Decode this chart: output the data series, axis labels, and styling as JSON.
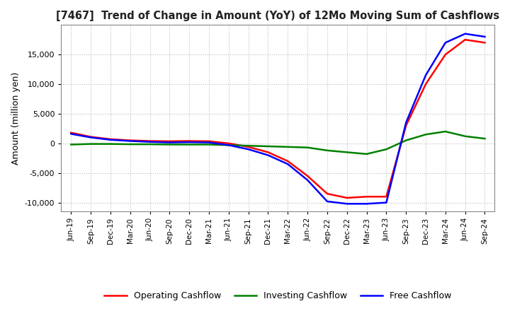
{
  "title": "[7467]  Trend of Change in Amount (YoY) of 12Mo Moving Sum of Cashflows",
  "ylabel": "Amount (million yen)",
  "ylim": [
    -11500,
    20000
  ],
  "yticks": [
    -10000,
    -5000,
    0,
    5000,
    10000,
    15000
  ],
  "background_color": "#ffffff",
  "grid_color": "#bbbbbb",
  "x_labels": [
    "Jun-19",
    "Sep-19",
    "Dec-19",
    "Mar-20",
    "Jun-20",
    "Sep-20",
    "Dec-20",
    "Mar-21",
    "Jun-21",
    "Sep-21",
    "Dec-21",
    "Mar-22",
    "Jun-22",
    "Sep-22",
    "Dec-22",
    "Mar-23",
    "Jun-23",
    "Sep-23",
    "Dec-23",
    "Mar-24",
    "Jun-24",
    "Sep-24"
  ],
  "operating": [
    1800,
    1100,
    700,
    500,
    400,
    350,
    400,
    350,
    0,
    -600,
    -1500,
    -3000,
    -5500,
    -8500,
    -9200,
    -9000,
    -9000,
    3000,
    10000,
    15000,
    17500,
    17000
  ],
  "investing": [
    -200,
    -100,
    -100,
    -150,
    -150,
    -200,
    -200,
    -200,
    -300,
    -400,
    -500,
    -600,
    -700,
    -1200,
    -1500,
    -1800,
    -1000,
    500,
    1500,
    2000,
    1200,
    800
  ],
  "free": [
    1600,
    1000,
    600,
    400,
    250,
    150,
    200,
    150,
    -300,
    -1000,
    -2000,
    -3500,
    -6200,
    -9800,
    -10200,
    -10200,
    -10000,
    3500,
    11500,
    17000,
    18500,
    18000
  ],
  "line_colors": {
    "operating": "#ff0000",
    "investing": "#008000",
    "free": "#0000ff"
  },
  "line_width": 1.8,
  "legend_labels": [
    "Operating Cashflow",
    "Investing Cashflow",
    "Free Cashflow"
  ]
}
